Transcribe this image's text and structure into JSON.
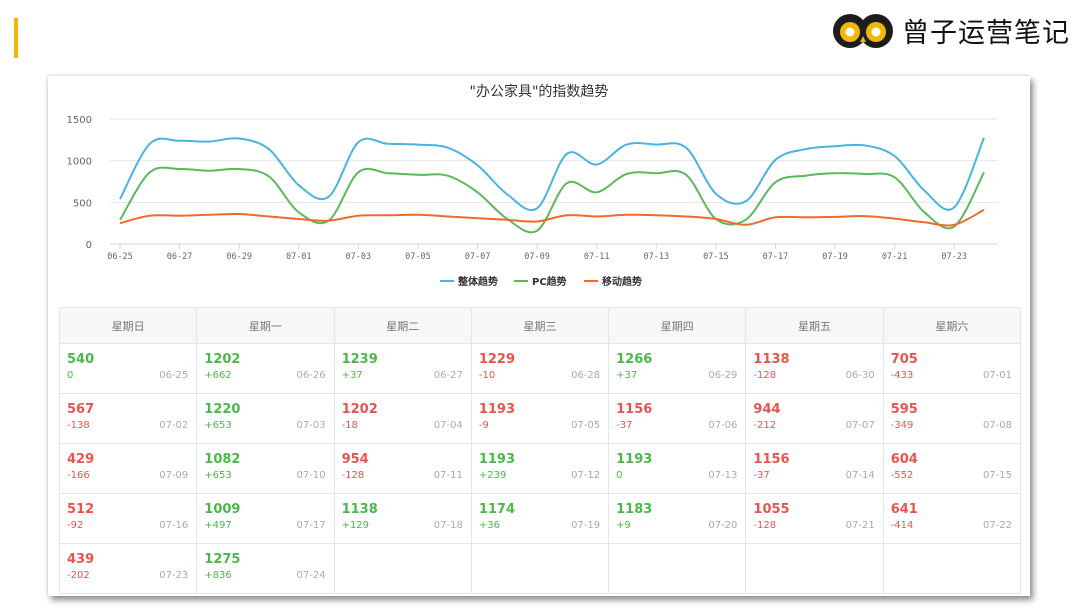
{
  "brand": {
    "name": "曾子运营笔记",
    "logo_icon": "owl-eyes-logo-icon",
    "accent_color": "#f2b705"
  },
  "chart_data": {
    "type": "line",
    "title": "\"办公家具\"的指数趋势",
    "ylim": [
      0,
      1500
    ],
    "y_ticks": [
      "0",
      "500",
      "1000",
      "1500"
    ],
    "x_tick_labels": [
      "06-25",
      "06-27",
      "06-29",
      "07-01",
      "07-03",
      "07-05",
      "07-07",
      "07-09",
      "07-11",
      "07-13",
      "07-15",
      "07-17",
      "07-19",
      "07-21",
      "07-23"
    ],
    "x": [
      "06-25",
      "06-26",
      "06-27",
      "06-28",
      "06-29",
      "06-30",
      "07-01",
      "07-02",
      "07-03",
      "07-04",
      "07-05",
      "07-06",
      "07-07",
      "07-08",
      "07-09",
      "07-10",
      "07-11",
      "07-12",
      "07-13",
      "07-14",
      "07-15",
      "07-16",
      "07-17",
      "07-18",
      "07-19",
      "07-20",
      "07-21",
      "07-22",
      "07-23",
      "07-24"
    ],
    "legend_position": "bottom",
    "series": [
      {
        "name": "整体趋势",
        "color": "#4ab3e2",
        "values": [
          540,
          1202,
          1239,
          1229,
          1266,
          1138,
          705,
          567,
          1220,
          1202,
          1193,
          1156,
          944,
          595,
          429,
          1082,
          954,
          1193,
          1193,
          1156,
          604,
          512,
          1009,
          1138,
          1174,
          1183,
          1055,
          641,
          439,
          1275
        ]
      },
      {
        "name": "PC趋势",
        "color": "#5cb85c",
        "values": [
          290,
          860,
          900,
          880,
          900,
          810,
          380,
          280,
          860,
          850,
          830,
          820,
          620,
          300,
          160,
          730,
          620,
          840,
          850,
          830,
          300,
          290,
          740,
          820,
          850,
          840,
          800,
          380,
          210,
          860
        ]
      },
      {
        "name": "移动趋势",
        "color": "#f06a2b",
        "values": [
          250,
          340,
          340,
          350,
          360,
          330,
          300,
          280,
          340,
          345,
          350,
          330,
          310,
          290,
          270,
          345,
          330,
          350,
          345,
          330,
          300,
          230,
          320,
          320,
          325,
          335,
          305,
          260,
          230,
          410
        ]
      }
    ]
  },
  "calendar": {
    "weekdays": [
      "星期日",
      "星期一",
      "星期二",
      "星期三",
      "星期四",
      "星期五",
      "星期六"
    ],
    "rows": [
      [
        {
          "value": "540",
          "delta": "0",
          "date": "06-25",
          "color": "up"
        },
        {
          "value": "1202",
          "delta": "+662",
          "date": "06-26",
          "color": "up"
        },
        {
          "value": "1239",
          "delta": "+37",
          "date": "06-27",
          "color": "up"
        },
        {
          "value": "1229",
          "delta": "-10",
          "date": "06-28",
          "color": "dn"
        },
        {
          "value": "1266",
          "delta": "+37",
          "date": "06-29",
          "color": "up"
        },
        {
          "value": "1138",
          "delta": "-128",
          "date": "06-30",
          "color": "dn"
        },
        {
          "value": "705",
          "delta": "-433",
          "date": "07-01",
          "color": "dn"
        }
      ],
      [
        {
          "value": "567",
          "delta": "-138",
          "date": "07-02",
          "color": "dn"
        },
        {
          "value": "1220",
          "delta": "+653",
          "date": "07-03",
          "color": "up"
        },
        {
          "value": "1202",
          "delta": "-18",
          "date": "07-04",
          "color": "dn"
        },
        {
          "value": "1193",
          "delta": "-9",
          "date": "07-05",
          "color": "dn"
        },
        {
          "value": "1156",
          "delta": "-37",
          "date": "07-06",
          "color": "dn"
        },
        {
          "value": "944",
          "delta": "-212",
          "date": "07-07",
          "color": "dn"
        },
        {
          "value": "595",
          "delta": "-349",
          "date": "07-08",
          "color": "dn"
        }
      ],
      [
        {
          "value": "429",
          "delta": "-166",
          "date": "07-09",
          "color": "dn"
        },
        {
          "value": "1082",
          "delta": "+653",
          "date": "07-10",
          "color": "up"
        },
        {
          "value": "954",
          "delta": "-128",
          "date": "07-11",
          "color": "dn"
        },
        {
          "value": "1193",
          "delta": "+239",
          "date": "07-12",
          "color": "up"
        },
        {
          "value": "1193",
          "delta": "0",
          "date": "07-13",
          "color": "up"
        },
        {
          "value": "1156",
          "delta": "-37",
          "date": "07-14",
          "color": "dn"
        },
        {
          "value": "604",
          "delta": "-552",
          "date": "07-15",
          "color": "dn"
        }
      ],
      [
        {
          "value": "512",
          "delta": "-92",
          "date": "07-16",
          "color": "dn"
        },
        {
          "value": "1009",
          "delta": "+497",
          "date": "07-17",
          "color": "up"
        },
        {
          "value": "1138",
          "delta": "+129",
          "date": "07-18",
          "color": "up"
        },
        {
          "value": "1174",
          "delta": "+36",
          "date": "07-19",
          "color": "up"
        },
        {
          "value": "1183",
          "delta": "+9",
          "date": "07-20",
          "color": "up"
        },
        {
          "value": "1055",
          "delta": "-128",
          "date": "07-21",
          "color": "dn"
        },
        {
          "value": "641",
          "delta": "-414",
          "date": "07-22",
          "color": "dn"
        }
      ],
      [
        {
          "value": "439",
          "delta": "-202",
          "date": "07-23",
          "color": "dn"
        },
        {
          "value": "1275",
          "delta": "+836",
          "date": "07-24",
          "color": "up"
        },
        null,
        null,
        null,
        null,
        null
      ]
    ]
  }
}
